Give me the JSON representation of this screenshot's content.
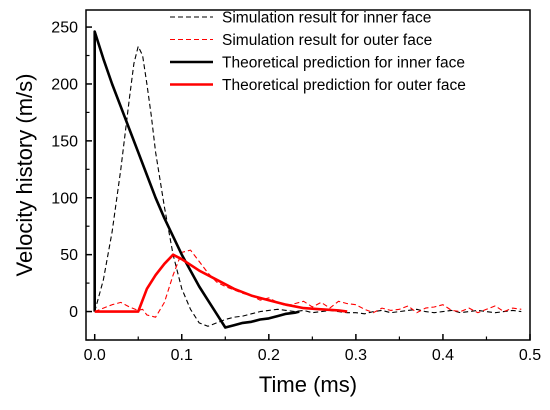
{
  "chart_data": {
    "type": "line",
    "xlabel": "Time (ms)",
    "ylabel": "Velocity history (m/s)",
    "xlim": [
      -0.01,
      0.5
    ],
    "ylim": [
      -25,
      265
    ],
    "xticks": [
      0.0,
      0.1,
      0.2,
      0.3,
      0.4,
      0.5
    ],
    "xtick_labels": [
      "0.0",
      "0.1",
      "0.2",
      "0.3",
      "0.4",
      "0.5"
    ],
    "yticks": [
      0,
      50,
      100,
      150,
      200,
      250
    ],
    "ytick_labels": [
      "0",
      "50",
      "100",
      "150",
      "200",
      "250"
    ],
    "legend_position": "top-right",
    "grid": false,
    "series": [
      {
        "name": "Simulation result for inner face",
        "color": "#000000",
        "style": "dashed",
        "x": [
          0.0,
          0.01,
          0.02,
          0.03,
          0.04,
          0.045,
          0.05,
          0.055,
          0.06,
          0.065,
          0.07,
          0.08,
          0.09,
          0.1,
          0.11,
          0.12,
          0.13,
          0.14,
          0.15,
          0.16,
          0.17,
          0.18,
          0.19,
          0.2,
          0.21,
          0.22,
          0.23,
          0.24,
          0.25,
          0.26,
          0.27,
          0.28,
          0.29,
          0.3,
          0.31,
          0.32,
          0.33,
          0.34,
          0.35,
          0.36,
          0.37,
          0.38,
          0.39,
          0.4,
          0.41,
          0.42,
          0.43,
          0.44,
          0.45,
          0.46,
          0.47,
          0.48,
          0.49
        ],
        "y": [
          0,
          28,
          70,
          125,
          188,
          218,
          233,
          225,
          200,
          172,
          140,
          92,
          50,
          20,
          2,
          -10,
          -13,
          -10,
          -7,
          -5,
          -4,
          -2,
          0,
          1,
          2,
          1,
          0,
          1,
          -1,
          0,
          1,
          0,
          -1,
          -1,
          -2,
          0,
          1,
          -1,
          0,
          1,
          2,
          0,
          -1,
          0,
          1,
          -1,
          0,
          1,
          0,
          -1,
          0,
          1,
          0
        ]
      },
      {
        "name": "Simulation result for outer face",
        "color": "#ff0000",
        "style": "dashed",
        "x": [
          0.0,
          0.01,
          0.02,
          0.03,
          0.04,
          0.05,
          0.055,
          0.06,
          0.07,
          0.08,
          0.09,
          0.1,
          0.11,
          0.12,
          0.13,
          0.14,
          0.15,
          0.16,
          0.17,
          0.18,
          0.19,
          0.2,
          0.21,
          0.22,
          0.23,
          0.24,
          0.25,
          0.26,
          0.27,
          0.28,
          0.29,
          0.3,
          0.31,
          0.32,
          0.33,
          0.34,
          0.35,
          0.36,
          0.37,
          0.38,
          0.39,
          0.4,
          0.41,
          0.42,
          0.43,
          0.44,
          0.45,
          0.46,
          0.47,
          0.48,
          0.49
        ],
        "y": [
          0,
          3,
          6,
          8,
          4,
          1,
          2,
          -3,
          -5,
          8,
          32,
          52,
          54,
          44,
          34,
          26,
          22,
          19,
          16,
          14,
          10,
          12,
          8,
          5,
          7,
          9,
          4,
          8,
          3,
          9,
          7,
          6,
          2,
          -1,
          3,
          1,
          2,
          5,
          -1,
          3,
          4,
          6,
          1,
          0,
          3,
          -1,
          2,
          5,
          0,
          3,
          2
        ]
      },
      {
        "name": "Theoretical prediction for inner face",
        "color": "#000000",
        "style": "solid",
        "x": [
          0.0,
          0.0,
          0.01,
          0.02,
          0.03,
          0.04,
          0.05,
          0.06,
          0.07,
          0.08,
          0.09,
          0.1,
          0.11,
          0.12,
          0.13,
          0.14,
          0.15,
          0.16,
          0.17,
          0.18,
          0.19,
          0.2,
          0.21,
          0.22,
          0.23,
          0.235
        ],
        "y": [
          0,
          246,
          222,
          200,
          180,
          160,
          140,
          120,
          100,
          82,
          66,
          50,
          36,
          22,
          10,
          -2,
          -14,
          -12,
          -10,
          -9,
          -7,
          -6,
          -4,
          -2,
          -1,
          0
        ]
      },
      {
        "name": "Theoretical prediction for outer face",
        "color": "#ff0000",
        "style": "solid",
        "x": [
          0.0,
          0.05,
          0.06,
          0.07,
          0.08,
          0.09,
          0.1,
          0.12,
          0.14,
          0.16,
          0.18,
          0.2,
          0.22,
          0.24,
          0.26,
          0.28,
          0.29
        ],
        "y": [
          0,
          0,
          20,
          32,
          42,
          50,
          46,
          36,
          28,
          20,
          14,
          10,
          6,
          3,
          2,
          1,
          0
        ]
      }
    ]
  }
}
